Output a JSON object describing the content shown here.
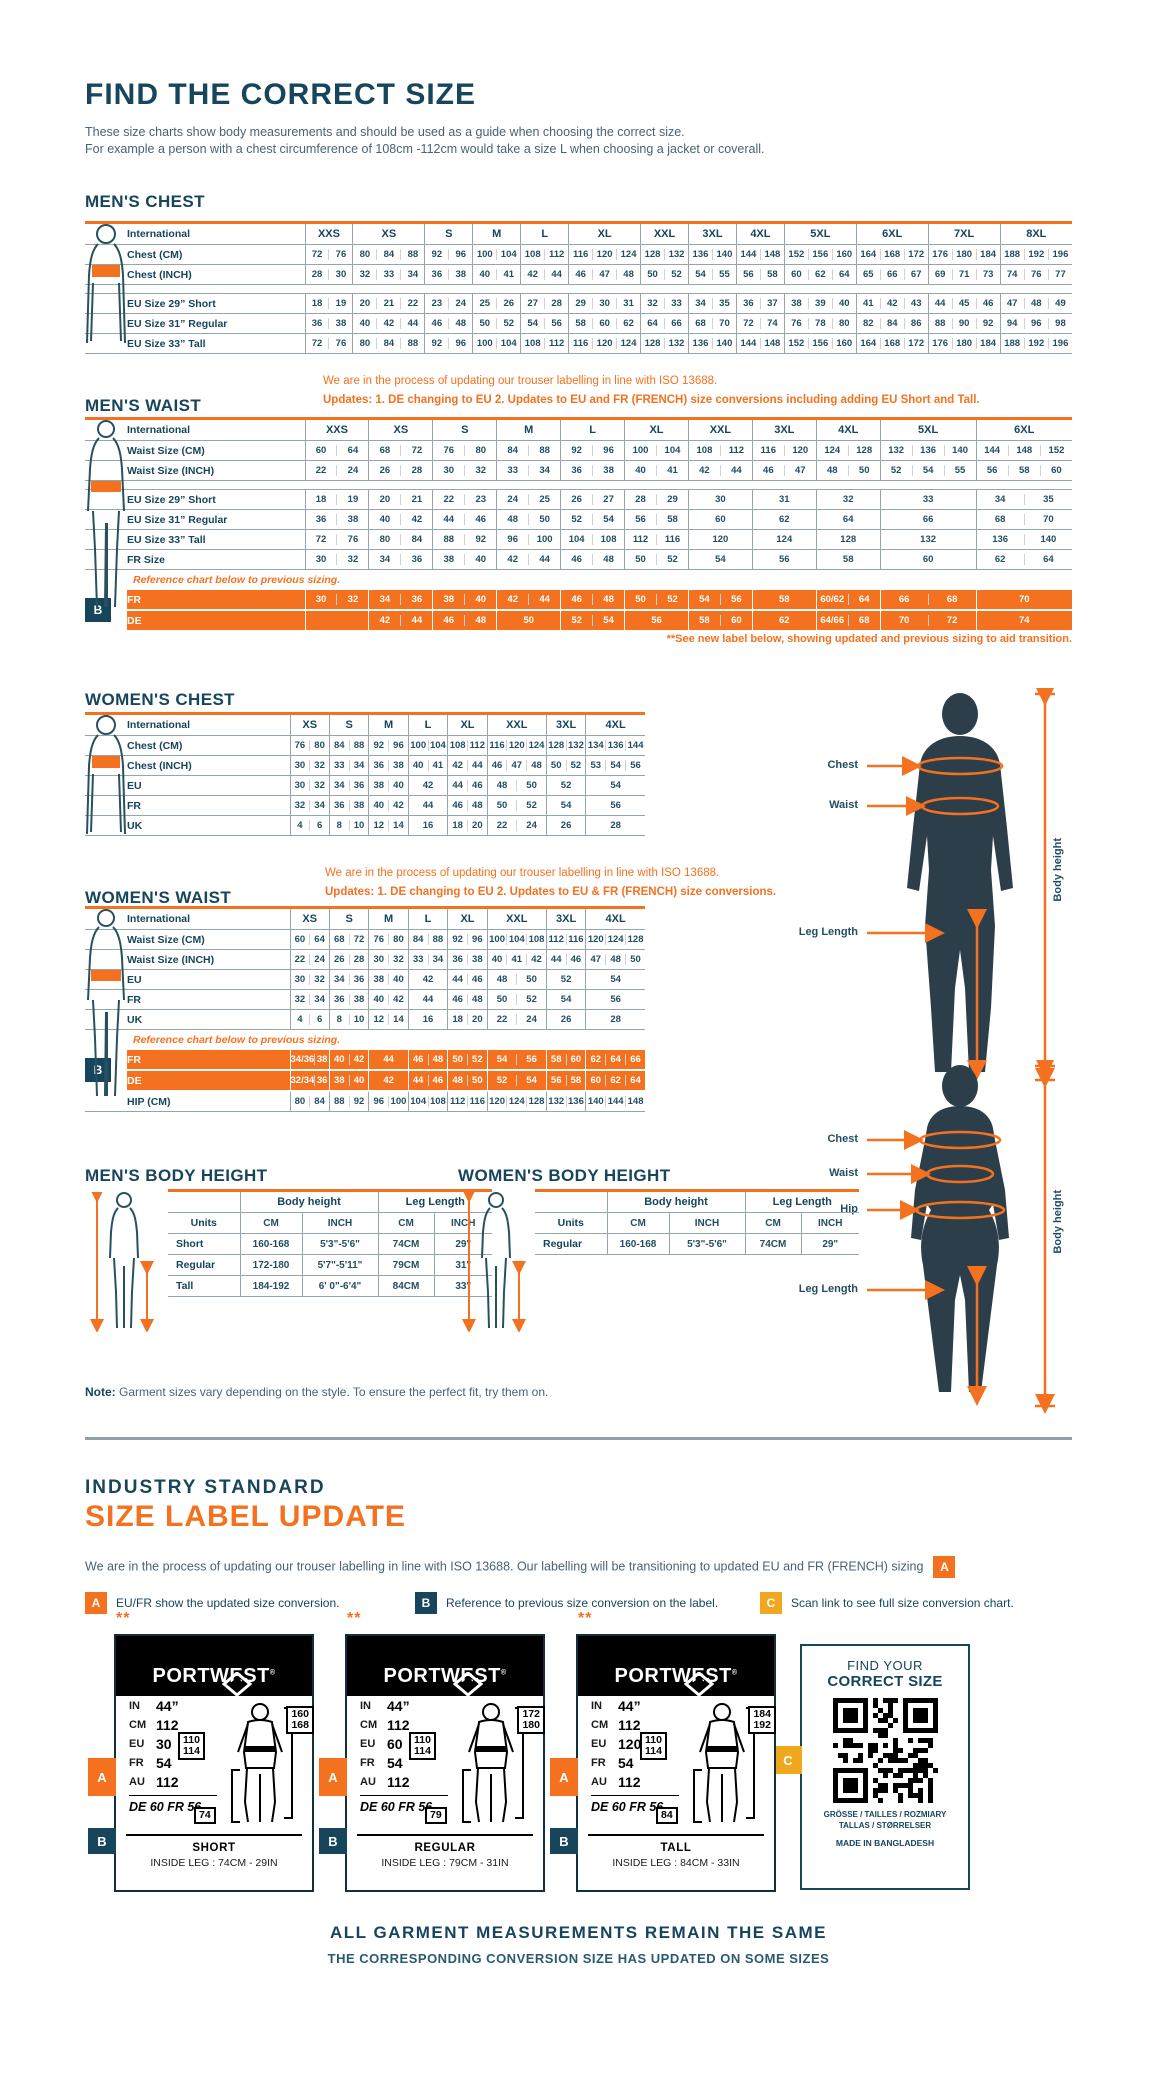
{
  "page": {
    "title": "FIND THE CORRECT SIZE",
    "intro1": "These size charts show body measurements and should be used as a guide when choosing the correct size.",
    "intro2": "For example a person with a chest circumference of 108cm -112cm would take a size L when choosing a jacket or coverall."
  },
  "colors": {
    "navy": "#16455C",
    "orange": "#F4711F",
    "amber": "#F0A81E"
  },
  "tables": {
    "mens_chest": {
      "title": "MEN'S CHEST",
      "label_header": "International",
      "columns": [
        {
          "label": "XXS",
          "span": 2
        },
        {
          "label": "XS",
          "span": 3
        },
        {
          "label": "S",
          "span": 2
        },
        {
          "label": "M",
          "span": 2
        },
        {
          "label": "L",
          "span": 2
        },
        {
          "label": "XL",
          "span": 3
        },
        {
          "label": "XXL",
          "span": 2
        },
        {
          "label": "3XL",
          "span": 2
        },
        {
          "label": "4XL",
          "span": 2
        },
        {
          "label": "5XL",
          "span": 3
        },
        {
          "label": "6XL",
          "span": 3
        },
        {
          "label": "7XL",
          "span": 3
        },
        {
          "label": "8XL",
          "span": 3
        }
      ],
      "rows": [
        {
          "kind": "data",
          "label": "Chest (CM)",
          "cells": [
            "72 76",
            "80 84 88",
            "92 96",
            "100 104",
            "108 112",
            "116 120 124",
            "128 132",
            "136 140",
            "144 148",
            "152 156 160",
            "164 168 172",
            "176 180 184",
            "188 192 196"
          ]
        },
        {
          "kind": "data",
          "label": "Chest (INCH)",
          "cells": [
            "28 30",
            "32 33 34",
            "36 38",
            "40 41",
            "42 44",
            "46 47 48",
            "50 52",
            "54 55",
            "56 58",
            "60 62 64",
            "65 66 67",
            "69 71 73",
            "74 76 77"
          ]
        },
        {
          "kind": "spacer"
        },
        {
          "kind": "data",
          "label": "EU Size 29” Short",
          "cells": [
            "18 19",
            "20 21 22",
            "23 24",
            "25 26",
            "27 28",
            "29 30 31",
            "32 33",
            "34 35",
            "36 37",
            "38 39 40",
            "41 42 43",
            "44 45 46",
            "47 48 49"
          ]
        },
        {
          "kind": "data",
          "label": "EU Size 31” Regular",
          "cells": [
            "36 38",
            "40 42 44",
            "46 48",
            "50 52",
            "54 56",
            "58 60 62",
            "64 66",
            "68 70",
            "72 74",
            "76 78 80",
            "82 84 86",
            "88 90 92",
            "94 96 98"
          ]
        },
        {
          "kind": "data",
          "label": "EU Size 33” Tall",
          "cells": [
            "72 76",
            "80 84 88",
            "92 96",
            "100 104",
            "108 112",
            "116 120 124",
            "128 132",
            "136 140",
            "144 148",
            "152 156 160",
            "164 168 172",
            "176 180 184",
            "188 192 196"
          ]
        }
      ]
    },
    "mens_waist": {
      "title": "MEN'S WAIST",
      "note1": "We are in the process of updating our trouser labelling in line with ISO 13688.",
      "note2": "Updates:   1. DE changing to EU    2. Updates to EU and FR (FRENCH) size conversions including adding EU Short and Tall.",
      "label_header": "International",
      "footnote": "**See new label below, showing updated and previous sizing to aid transition.",
      "columns": [
        {
          "label": "XXS",
          "span": 2
        },
        {
          "label": "XS",
          "span": 2
        },
        {
          "label": "S",
          "span": 2
        },
        {
          "label": "M",
          "span": 2
        },
        {
          "label": "L",
          "span": 2
        },
        {
          "label": "XL",
          "span": 2
        },
        {
          "label": "XXL",
          "span": 2
        },
        {
          "label": "3XL",
          "span": 2
        },
        {
          "label": "4XL",
          "span": 2
        },
        {
          "label": "5XL",
          "span": 3
        },
        {
          "label": "6XL",
          "span": 3
        }
      ],
      "rows": [
        {
          "kind": "data",
          "label": "Waist Size (CM)",
          "cells": [
            "60 64",
            "68 72",
            "76 80",
            "84 88",
            "92 96",
            "100 104",
            "108 112",
            "116 120",
            "124 128",
            "132 136 140",
            "144 148 152"
          ]
        },
        {
          "kind": "data",
          "label": "Waist Size (INCH)",
          "cells": [
            "22 24",
            "26 28",
            "30 32",
            "33 34",
            "36 38",
            "40 41",
            "42 44",
            "46 47",
            "48 50",
            "52 54 55",
            "56 58 60"
          ]
        },
        {
          "kind": "spacer"
        },
        {
          "kind": "data",
          "label": "EU Size 29” Short",
          "cells": [
            "18 19",
            "20 21",
            "22 23",
            "24 25",
            "26 27",
            "28 29",
            "30",
            "31",
            "32",
            "33",
            "34 35"
          ]
        },
        {
          "kind": "data",
          "label": "EU Size 31” Regular",
          "cells": [
            "36 38",
            "40 42",
            "44 46",
            "48 50",
            "52 54",
            "56 58",
            "60",
            "62",
            "64",
            "66",
            "68 70"
          ]
        },
        {
          "kind": "data",
          "label": "EU Size 33” Tall",
          "cells": [
            "72 76",
            "80 84",
            "88 92",
            "96 100",
            "104 108",
            "112 116",
            "120",
            "124",
            "128",
            "132",
            "136 140"
          ]
        },
        {
          "kind": "data",
          "label": "FR Size",
          "cells": [
            "30 32",
            "34 36",
            "38 40",
            "42 44",
            "46 48",
            "50 52",
            "54",
            "56",
            "58",
            "60",
            "62 64"
          ]
        },
        {
          "kind": "note",
          "text": "Reference chart below to previous sizing."
        },
        {
          "kind": "orange",
          "label": "FR",
          "badge": "B",
          "cells": [
            "30 32",
            "34 36",
            "38 40",
            "42 44",
            "46 48",
            "50 52",
            "54 56",
            "58",
            "60/62 64",
            "66 68",
            "70"
          ]
        },
        {
          "kind": "orange",
          "label": "DE",
          "cells": [
            "",
            "42 44",
            "46 48",
            "50",
            "52 54",
            "56",
            "58 60",
            "62",
            "64/66 68",
            "70 72",
            "74"
          ]
        }
      ]
    },
    "womens_chest": {
      "title": "WOMEN'S CHEST",
      "label_header": "International",
      "columns": [
        {
          "label": "XS",
          "span": 2
        },
        {
          "label": "S",
          "span": 2
        },
        {
          "label": "M",
          "span": 2
        },
        {
          "label": "L",
          "span": 2
        },
        {
          "label": "XL",
          "span": 2
        },
        {
          "label": "XXL",
          "span": 3
        },
        {
          "label": "3XL",
          "span": 2
        },
        {
          "label": "4XL",
          "span": 3
        }
      ],
      "rows": [
        {
          "kind": "data",
          "label": "Chest (CM)",
          "cells": [
            "76 80",
            "84 88",
            "92 96",
            "100 104",
            "108 112",
            "116 120 124",
            "128 132",
            "134 136 144"
          ]
        },
        {
          "kind": "data",
          "label": "Chest (INCH)",
          "cells": [
            "30 32",
            "33 34",
            "36 38",
            "40 41",
            "42 44",
            "46 47 48",
            "50 52",
            "53 54 56"
          ]
        },
        {
          "kind": "data",
          "label": "EU",
          "cells": [
            "30 32",
            "34 36",
            "38 40",
            "42",
            "44 46",
            "48 50",
            "52",
            "54"
          ]
        },
        {
          "kind": "data",
          "label": "FR",
          "cells": [
            "32 34",
            "36 38",
            "40 42",
            "44",
            "46 48",
            "50 52",
            "54",
            "56"
          ]
        },
        {
          "kind": "data",
          "label": "UK",
          "cells": [
            "4 6",
            "8 10",
            "12 14",
            "16",
            "18 20",
            "22 24",
            "26",
            "28"
          ]
        }
      ]
    },
    "womens_waist": {
      "title": "WOMEN'S WAIST",
      "note1": "We are in the process of updating our trouser labelling in line with ISO 13688.",
      "note2": "Updates:   1. DE changing to EU    2. Updates to EU & FR (FRENCH) size conversions.",
      "label_header": "International",
      "columns": [
        {
          "label": "XS",
          "span": 2
        },
        {
          "label": "S",
          "span": 2
        },
        {
          "label": "M",
          "span": 2
        },
        {
          "label": "L",
          "span": 2
        },
        {
          "label": "XL",
          "span": 2
        },
        {
          "label": "XXL",
          "span": 3
        },
        {
          "label": "3XL",
          "span": 2
        },
        {
          "label": "4XL",
          "span": 3
        }
      ],
      "rows": [
        {
          "kind": "data",
          "label": "Waist Size (CM)",
          "cells": [
            "60 64",
            "68 72",
            "76 80",
            "84 88",
            "92 96",
            "100 104 108",
            "112 116",
            "120 124 128"
          ]
        },
        {
          "kind": "data",
          "label": "Waist Size (INCH)",
          "cells": [
            "22 24",
            "26 28",
            "30 32",
            "33 34",
            "36 38",
            "40 41 42",
            "44 46",
            "47 48 50"
          ]
        },
        {
          "kind": "data",
          "label": "EU",
          "cells": [
            "30 32",
            "34 36",
            "38 40",
            "42",
            "44 46",
            "48 50",
            "52",
            "54"
          ]
        },
        {
          "kind": "data",
          "label": "FR",
          "cells": [
            "32 34",
            "36 38",
            "40 42",
            "44",
            "46 48",
            "50 52",
            "54",
            "56"
          ]
        },
        {
          "kind": "data",
          "label": "UK",
          "cells": [
            "4 6",
            "8 10",
            "12 14",
            "16",
            "18 20",
            "22 24",
            "26",
            "28"
          ]
        },
        {
          "kind": "note",
          "text": "Reference chart below to previous sizing."
        },
        {
          "kind": "orange",
          "label": "FR",
          "badge": "B",
          "cells": [
            "34/36 38",
            "40 42",
            "44",
            "46 48",
            "50 52",
            "54 56",
            "58 60",
            "62 64 66"
          ]
        },
        {
          "kind": "orange",
          "label": "DE",
          "cells": [
            "32/34 36",
            "38 40",
            "42",
            "44 46",
            "48 50",
            "52 54",
            "56 58",
            "60 62 64"
          ]
        },
        {
          "kind": "data",
          "label": "HIP (CM)",
          "cells": [
            "80 84",
            "88 92",
            "96 100",
            "104 108",
            "112 116",
            "120 124 128",
            "132 136",
            "140 144 148"
          ]
        }
      ]
    }
  },
  "height_tables": {
    "mens": {
      "title": "MEN'S BODY HEIGHT",
      "group1": "Body height",
      "group2": "Leg Length",
      "units_label": "Units",
      "sub": [
        "CM",
        "INCH",
        "CM",
        "INCH"
      ],
      "rows": [
        {
          "label": "Short",
          "values": [
            "160-168",
            "5'3\"-5'6\"",
            "74CM",
            "29\""
          ]
        },
        {
          "label": "Regular",
          "values": [
            "172-180",
            "5'7\"-5'11\"",
            "79CM",
            "31\""
          ]
        },
        {
          "label": "Tall",
          "values": [
            "184-192",
            "6' 0\"-6'4\"",
            "84CM",
            "33\""
          ]
        }
      ]
    },
    "womens": {
      "title": "WOMEN'S BODY HEIGHT",
      "group1": "Body height",
      "group2": "Leg Length",
      "units_label": "Units",
      "sub": [
        "CM",
        "INCH",
        "CM",
        "INCH"
      ],
      "rows": [
        {
          "label": "Regular",
          "values": [
            "160-168",
            "5'3\"-5'6\"",
            "74CM",
            "29\""
          ]
        }
      ]
    }
  },
  "figures": {
    "male": {
      "chest": "Chest",
      "waist": "Waist",
      "leg": "Leg Length",
      "height": "Body height"
    },
    "female": {
      "chest": "Chest",
      "waist": "Waist",
      "hip": "Hip",
      "leg": "Leg Length",
      "height": "Body height"
    }
  },
  "note": {
    "bold": "Note:",
    "text": " Garment sizes vary depending on the style. To ensure the perfect fit, try them on."
  },
  "industry": {
    "kicker": "INDUSTRY STANDARD",
    "title": "SIZE LABEL UPDATE",
    "intro": "We are in the process of updating our trouser labelling in line with ISO 13688. Our labelling will be transitioning to updated EU and FR (FRENCH) sizing",
    "intro_badge": "A",
    "legend": [
      {
        "badge": "A",
        "color": "orange",
        "text": "EU/FR show the updated size conversion."
      },
      {
        "badge": "B",
        "color": "navy",
        "text": "Reference to previous size conversion on the label."
      },
      {
        "badge": "C",
        "color": "amber",
        "text": "Scan link to see full size conversion chart."
      }
    ]
  },
  "label_cards": {
    "stars": "**",
    "brand": "PORTWEST",
    "badge_a": "A",
    "badge_b": "B",
    "cards": [
      {
        "name": "SHORT",
        "rows": [
          [
            "IN",
            "44”"
          ],
          [
            "CM",
            "112"
          ],
          [
            "EU",
            "30"
          ],
          [
            "FR",
            "54"
          ],
          [
            "AU",
            "112"
          ]
        ],
        "de_line": "DE 60 FR 56",
        "waist_box": "110|114",
        "height_box": "160|168",
        "leg_box": "74",
        "inside_leg": "INSIDE LEG : 74CM - 29IN"
      },
      {
        "name": "REGULAR",
        "rows": [
          [
            "IN",
            "44”"
          ],
          [
            "CM",
            "112"
          ],
          [
            "EU",
            "60"
          ],
          [
            "FR",
            "54"
          ],
          [
            "AU",
            "112"
          ]
        ],
        "de_line": "DE 60 FR 56",
        "waist_box": "110|114",
        "height_box": "172|180",
        "leg_box": "79",
        "inside_leg": "INSIDE LEG : 79CM - 31IN"
      },
      {
        "name": "TALL",
        "rows": [
          [
            "IN",
            "44”"
          ],
          [
            "CM",
            "112"
          ],
          [
            "EU",
            "120"
          ],
          [
            "FR",
            "54"
          ],
          [
            "AU",
            "112"
          ]
        ],
        "de_line": "DE 60 FR 56",
        "waist_box": "110|114",
        "height_box": "184|192",
        "leg_box": "84",
        "inside_leg": "INSIDE LEG : 84CM - 33IN"
      }
    ],
    "qr_card": {
      "line1": "FIND YOUR",
      "line2": "CORRECT SIZE",
      "badge": "C",
      "langs1": "GRÖSSE / TAILLES / ROZMIARY",
      "langs2": "TALLAS / STØRRELSER",
      "made": "MADE IN BANGLADESH"
    }
  },
  "footer": {
    "line1": "ALL GARMENT MEASUREMENTS REMAIN THE SAME",
    "line2": "THE CORRESPONDING CONVERSION SIZE HAS UPDATED ON SOME SIZES"
  }
}
